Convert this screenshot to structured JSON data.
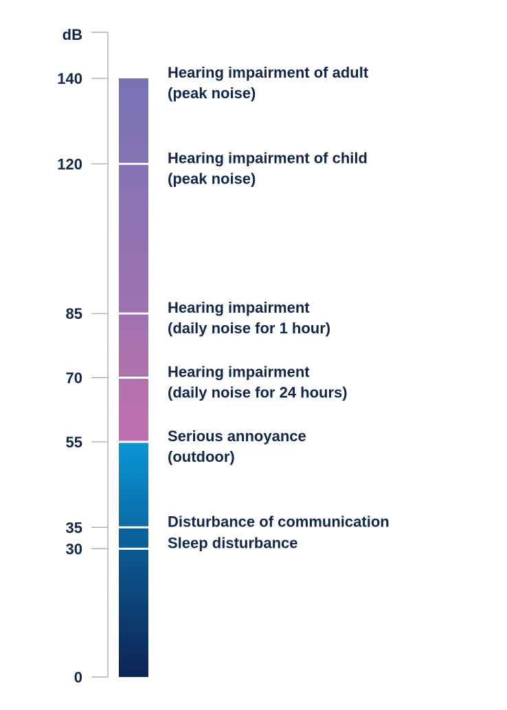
{
  "chart_data": {
    "type": "bar",
    "orientation": "vertical",
    "unit_label": "dB",
    "ylim": [
      0,
      140
    ],
    "ticks": [
      0,
      30,
      35,
      55,
      70,
      85,
      120,
      140
    ],
    "grid": false,
    "legend": "none",
    "segments": [
      {
        "from": 0,
        "to": 30,
        "color_bottom": "#0d2454",
        "color_top": "#0a5b92"
      },
      {
        "from": 30,
        "to": 35,
        "color_bottom": "#0a5f97",
        "color_top": "#0a649d"
      },
      {
        "from": 35,
        "to": 55,
        "color_bottom": "#0a6ba7",
        "color_top": "#0a97d6"
      },
      {
        "from": 55,
        "to": 70,
        "color_bottom": "#bf6fb1",
        "color_top": "#b472ad"
      },
      {
        "from": 70,
        "to": 85,
        "color_bottom": "#b072ae",
        "color_top": "#a272b0"
      },
      {
        "from": 85,
        "to": 120,
        "color_bottom": "#9e72b1",
        "color_top": "#8773b4"
      },
      {
        "from": 120,
        "to": 140,
        "color_bottom": "#8573b4",
        "color_top": "#7674b6"
      }
    ],
    "annotations": [
      {
        "value": 140,
        "lines": [
          "Hearing impairment of adult",
          "(peak noise)"
        ]
      },
      {
        "value": 120,
        "lines": [
          "Hearing impairment of child",
          "(peak noise)"
        ]
      },
      {
        "value": 85,
        "lines": [
          "Hearing impairment",
          "(daily noise for 1 hour)"
        ]
      },
      {
        "value": 70,
        "lines": [
          "Hearing impairment",
          "(daily noise for 24 hours)"
        ]
      },
      {
        "value": 55,
        "lines": [
          "Serious annoyance",
          "(outdoor)"
        ]
      },
      {
        "value": 35,
        "lines": [
          "Disturbance of communication"
        ]
      },
      {
        "value": 30,
        "lines": [
          "Sleep disturbance"
        ]
      }
    ]
  },
  "colors": {
    "text": "#10264f",
    "axis": "#9aa3ad",
    "separator": "#ffffff"
  }
}
